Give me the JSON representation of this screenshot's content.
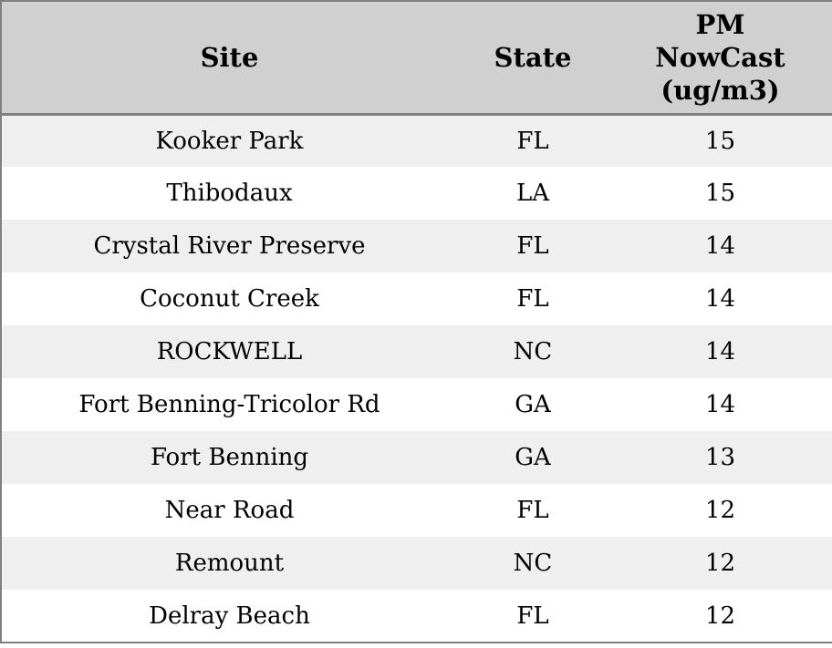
{
  "colors": {
    "header_bg": "#d0d0d0",
    "row_alt_bg": "#efefef",
    "row_bg": "#ffffff",
    "border": "#808080",
    "text": "#000000"
  },
  "table": {
    "headers": {
      "site": "Site",
      "state": "State",
      "pm_label": "PM NowCast (ug/m3)",
      "pm_lines": [
        "PM",
        "NowCast",
        "(ug/m3)"
      ]
    },
    "rows": [
      {
        "site": "Kooker Park",
        "state": "FL",
        "pm": "15"
      },
      {
        "site": "Thibodaux",
        "state": "LA",
        "pm": "15"
      },
      {
        "site": "Crystal River Preserve",
        "state": "FL",
        "pm": "14"
      },
      {
        "site": "Coconut Creek",
        "state": "FL",
        "pm": "14"
      },
      {
        "site": "ROCKWELL",
        "state": "NC",
        "pm": "14"
      },
      {
        "site": "Fort Benning-Tricolor Rd",
        "state": "GA",
        "pm": "14"
      },
      {
        "site": "Fort Benning",
        "state": "GA",
        "pm": "13"
      },
      {
        "site": "Near Road",
        "state": "FL",
        "pm": "12"
      },
      {
        "site": "Remount",
        "state": "NC",
        "pm": "12"
      },
      {
        "site": "Delray Beach",
        "state": "FL",
        "pm": "12"
      }
    ]
  }
}
